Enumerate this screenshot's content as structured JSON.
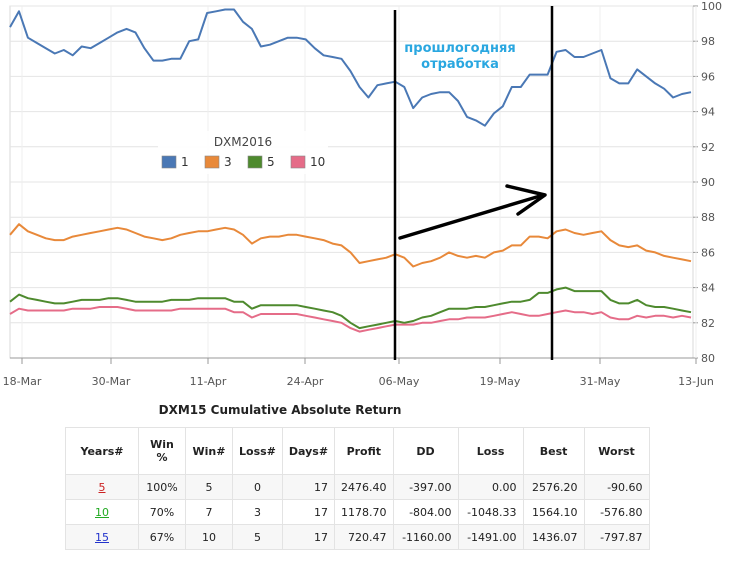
{
  "chart_data": {
    "type": "line",
    "title": "",
    "xlabel": "",
    "ylabel": "",
    "ylim": [
      80,
      100
    ],
    "y_ticks": [
      "80",
      "82",
      "84",
      "86",
      "88",
      "90",
      "92",
      "94",
      "96",
      "98",
      "100"
    ],
    "x_ticks": [
      "18-Mar",
      "30-Mar",
      "11-Apr",
      "24-Apr",
      "06-May",
      "19-May",
      "31-May",
      "13-Jun"
    ],
    "legend": {
      "title": "DXM2016",
      "placement": "left-middle"
    },
    "annotation": {
      "lines": [
        "прошлогодняя",
        "отработка"
      ]
    },
    "series": [
      {
        "name": "1",
        "color": "#4a78b5",
        "values": [
          98.8,
          99.7,
          98.2,
          97.9,
          97.6,
          97.3,
          97.5,
          97.2,
          97.7,
          97.6,
          97.9,
          98.2,
          98.5,
          98.7,
          98.5,
          97.6,
          96.9,
          96.9,
          97.0,
          97.0,
          98.0,
          98.1,
          99.6,
          99.7,
          99.8,
          99.8,
          99.1,
          98.7,
          97.7,
          97.8,
          98.0,
          98.2,
          98.2,
          98.1,
          97.6,
          97.2,
          97.1,
          97.0,
          96.3,
          95.4,
          94.8,
          95.5,
          95.6,
          95.7,
          95.4,
          94.2,
          94.8,
          95.0,
          95.1,
          95.1,
          94.6,
          93.7,
          93.5,
          93.2,
          93.9,
          94.3,
          95.4,
          95.4,
          96.1,
          96.1,
          96.1,
          97.4,
          97.5,
          97.1,
          97.1,
          97.3,
          97.5,
          95.9,
          95.6,
          95.6,
          96.4,
          96.0,
          95.6,
          95.3,
          94.8,
          95.0,
          95.1
        ]
      },
      {
        "name": "3",
        "color": "#e8893a",
        "values": [
          87.0,
          87.6,
          87.2,
          87.0,
          86.8,
          86.7,
          86.7,
          86.9,
          87.0,
          87.1,
          87.2,
          87.3,
          87.4,
          87.3,
          87.1,
          86.9,
          86.8,
          86.7,
          86.8,
          87.0,
          87.1,
          87.2,
          87.2,
          87.3,
          87.4,
          87.3,
          87.0,
          86.5,
          86.8,
          86.9,
          86.9,
          87.0,
          87.0,
          86.9,
          86.8,
          86.7,
          86.5,
          86.4,
          86.0,
          85.4,
          85.5,
          85.6,
          85.7,
          85.9,
          85.7,
          85.2,
          85.4,
          85.5,
          85.7,
          86.0,
          85.8,
          85.7,
          85.8,
          85.7,
          86.0,
          86.1,
          86.4,
          86.4,
          86.9,
          86.9,
          86.8,
          87.2,
          87.3,
          87.1,
          87.0,
          87.1,
          87.2,
          86.7,
          86.4,
          86.3,
          86.4,
          86.1,
          86.0,
          85.8,
          85.7,
          85.6,
          85.5
        ]
      },
      {
        "name": "5",
        "color": "#4e8a2e",
        "values": [
          83.2,
          83.6,
          83.4,
          83.3,
          83.2,
          83.1,
          83.1,
          83.2,
          83.3,
          83.3,
          83.3,
          83.4,
          83.4,
          83.3,
          83.2,
          83.2,
          83.2,
          83.2,
          83.3,
          83.3,
          83.3,
          83.4,
          83.4,
          83.4,
          83.4,
          83.2,
          83.2,
          82.8,
          83.0,
          83.0,
          83.0,
          83.0,
          83.0,
          82.9,
          82.8,
          82.7,
          82.6,
          82.4,
          82.0,
          81.7,
          81.8,
          81.9,
          82.0,
          82.1,
          82.0,
          82.1,
          82.3,
          82.4,
          82.6,
          82.8,
          82.8,
          82.8,
          82.9,
          82.9,
          83.0,
          83.1,
          83.2,
          83.2,
          83.3,
          83.7,
          83.7,
          83.9,
          84.0,
          83.8,
          83.8,
          83.8,
          83.8,
          83.3,
          83.1,
          83.1,
          83.3,
          83.0,
          82.9,
          82.9,
          82.8,
          82.7,
          82.6
        ]
      },
      {
        "name": "10",
        "color": "#e56c88",
        "values": [
          82.5,
          82.8,
          82.7,
          82.7,
          82.7,
          82.7,
          82.7,
          82.8,
          82.8,
          82.8,
          82.9,
          82.9,
          82.9,
          82.8,
          82.7,
          82.7,
          82.7,
          82.7,
          82.7,
          82.8,
          82.8,
          82.8,
          82.8,
          82.8,
          82.8,
          82.6,
          82.6,
          82.3,
          82.5,
          82.5,
          82.5,
          82.5,
          82.5,
          82.4,
          82.3,
          82.2,
          82.1,
          82.0,
          81.7,
          81.5,
          81.6,
          81.7,
          81.8,
          81.9,
          81.9,
          81.9,
          82.0,
          82.0,
          82.1,
          82.2,
          82.2,
          82.3,
          82.3,
          82.3,
          82.4,
          82.5,
          82.6,
          82.5,
          82.4,
          82.4,
          82.5,
          82.6,
          82.7,
          82.6,
          82.6,
          82.5,
          82.6,
          82.3,
          82.2,
          82.2,
          82.4,
          82.3,
          82.4,
          82.4,
          82.3,
          82.4,
          82.3
        ]
      }
    ]
  },
  "table": {
    "title": "DXM15 Cumulative Absolute Return",
    "headers": {
      "years": "Years#",
      "win_pct_1": "Win",
      "win_pct_2": "%",
      "win": "Win#",
      "loss": "Loss#",
      "days": "Days#",
      "profit": "Profit",
      "dd": "DD",
      "loss_amt": "Loss",
      "best": "Best",
      "worst": "Worst"
    },
    "rows": [
      {
        "years": "5",
        "years_color": "#cc2222",
        "win_pct": "100%",
        "win": "5",
        "loss": "0",
        "days": "17",
        "profit": "2476.40",
        "dd": "-397.00",
        "loss_amt": "0.00",
        "best": "2576.20",
        "worst": "-90.60"
      },
      {
        "years": "10",
        "years_color": "#22aa22",
        "win_pct": "70%",
        "win": "7",
        "loss": "3",
        "days": "17",
        "profit": "1178.70",
        "dd": "-804.00",
        "loss_amt": "-1048.33",
        "best": "1564.10",
        "worst": "-576.80"
      },
      {
        "years": "15",
        "years_color": "#2233cc",
        "win_pct": "67%",
        "win": "10",
        "loss": "5",
        "days": "17",
        "profit": "720.47",
        "dd": "-1160.00",
        "loss_amt": "-1491.00",
        "best": "1436.07",
        "worst": "-797.87"
      }
    ]
  }
}
